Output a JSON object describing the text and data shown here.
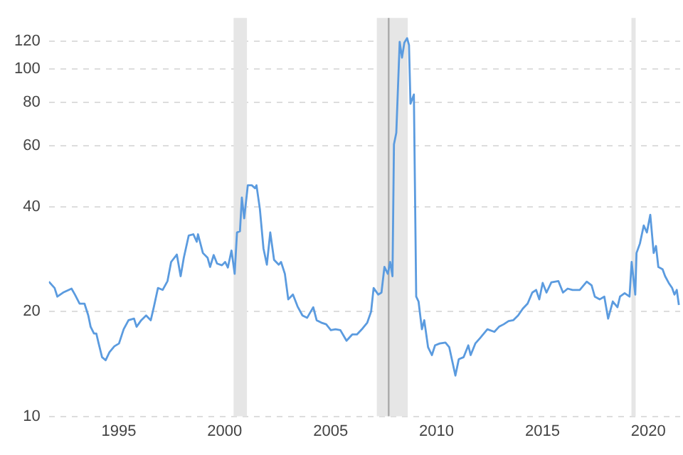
{
  "chart_data": {
    "type": "line",
    "log": "y",
    "grid": "y",
    "marker": "none",
    "line_style": "solid",
    "xlim": [
      1991.7,
      2021.5
    ],
    "xticks": [
      1995,
      2000,
      2005,
      2010,
      2015,
      2020
    ],
    "ylim": [
      10,
      140
    ],
    "yticks": [
      10,
      20,
      40,
      60,
      80,
      100,
      120
    ],
    "bands": [
      {
        "axis": "x",
        "from": 2000.42,
        "to": 2001.05,
        "color": "#e6e6e6"
      },
      {
        "axis": "x",
        "from": 2007.18,
        "to": 2008.64,
        "color": "#e6e6e6"
      },
      {
        "axis": "x",
        "from": 2019.2,
        "to": 2019.4,
        "color": "#e6e6e6"
      }
    ],
    "ref_lines": [
      {
        "axis": "x",
        "value": 2007.74,
        "color": "#aaaaaa"
      }
    ],
    "series": [
      {
        "color": "#5b9bdf",
        "x": [
          1991.7,
          1991.97,
          1992.1,
          1992.37,
          1992.77,
          1992.93,
          1993.15,
          1993.38,
          1993.56,
          1993.67,
          1993.83,
          1993.94,
          1994.05,
          1994.21,
          1994.38,
          1994.56,
          1994.79,
          1995.01,
          1995.23,
          1995.46,
          1995.72,
          1995.84,
          1996.06,
          1996.29,
          1996.51,
          1996.66,
          1996.85,
          1997.07,
          1997.3,
          1997.47,
          1997.74,
          1997.92,
          1998.07,
          1998.3,
          1998.52,
          1998.68,
          1998.74,
          1998.97,
          1999.19,
          1999.31,
          1999.48,
          1999.64,
          1999.87,
          2000.02,
          2000.15,
          2000.32,
          2000.47,
          2000.58,
          2000.72,
          2000.81,
          2000.92,
          2001.09,
          2001.28,
          2001.43,
          2001.5,
          2001.66,
          2001.83,
          2001.99,
          2002.15,
          2002.33,
          2002.55,
          2002.66,
          2002.84,
          2003.0,
          2003.22,
          2003.44,
          2003.67,
          2003.89,
          2004.18,
          2004.34,
          2004.56,
          2004.79,
          2005.01,
          2005.23,
          2005.46,
          2005.75,
          2006.02,
          2006.24,
          2006.51,
          2006.73,
          2006.91,
          2007.03,
          2007.25,
          2007.4,
          2007.54,
          2007.7,
          2007.81,
          2007.92,
          2007.99,
          2008.1,
          2008.26,
          2008.37,
          2008.48,
          2008.61,
          2008.7,
          2008.77,
          2008.93,
          2009.04,
          2009.15,
          2009.31,
          2009.42,
          2009.6,
          2009.78,
          2009.93,
          2010.15,
          2010.42,
          2010.6,
          2010.89,
          2011.05,
          2011.28,
          2011.5,
          2011.61,
          2011.83,
          2012.06,
          2012.4,
          2012.73,
          2012.95,
          2013.17,
          2013.4,
          2013.62,
          2013.85,
          2014.07,
          2014.3,
          2014.52,
          2014.7,
          2014.85,
          2015.01,
          2015.19,
          2015.42,
          2015.75,
          2015.97,
          2016.19,
          2016.42,
          2016.76,
          2017.09,
          2017.32,
          2017.47,
          2017.7,
          2017.92,
          2018.1,
          2018.32,
          2018.54,
          2018.66,
          2018.88,
          2019.11,
          2019.21,
          2019.38,
          2019.44,
          2019.6,
          2019.78,
          2019.93,
          2020.09,
          2020.25,
          2020.36,
          2020.47,
          2020.67,
          2020.79,
          2020.96,
          2021.12,
          2021.23,
          2021.34,
          2021.44
        ],
        "values": [
          24.4,
          23.4,
          22.1,
          22.7,
          23.3,
          22.4,
          21.1,
          21.1,
          19.5,
          18.1,
          17.3,
          17.3,
          16.2,
          14.8,
          14.5,
          15.3,
          15.9,
          16.2,
          17.8,
          18.9,
          19.1,
          18.1,
          18.9,
          19.5,
          18.9,
          20.7,
          23.4,
          23.1,
          24.5,
          27.8,
          29.2,
          25.3,
          28.6,
          33.1,
          33.4,
          31.8,
          33.4,
          29.5,
          28.6,
          26.9,
          29.1,
          27.5,
          27.2,
          27.8,
          26.8,
          30.0,
          25.7,
          33.8,
          34.1,
          42.6,
          37.1,
          46.2,
          46.2,
          45.3,
          46.2,
          39.5,
          30.4,
          27.3,
          33.8,
          28.2,
          27.3,
          27.8,
          25.7,
          21.7,
          22.4,
          20.7,
          19.5,
          19.2,
          20.6,
          18.9,
          18.6,
          18.4,
          17.7,
          17.8,
          17.7,
          16.5,
          17.2,
          17.2,
          17.9,
          18.6,
          20.0,
          23.4,
          22.4,
          22.7,
          26.9,
          25.7,
          27.8,
          25.3,
          60.6,
          65.4,
          119.5,
          107.6,
          118.8,
          122.4,
          116.9,
          79.3,
          84.3,
          22.1,
          21.4,
          17.8,
          18.9,
          15.8,
          15.0,
          16.0,
          16.2,
          16.3,
          15.8,
          13.1,
          14.6,
          14.8,
          16.0,
          15.0,
          16.2,
          16.8,
          17.8,
          17.5,
          18.1,
          18.4,
          18.8,
          18.9,
          19.5,
          20.4,
          21.1,
          22.7,
          23.1,
          21.7,
          24.2,
          22.7,
          24.3,
          24.5,
          22.7,
          23.3,
          23.1,
          23.1,
          24.4,
          23.8,
          22.1,
          21.7,
          22.1,
          19.1,
          21.4,
          20.6,
          22.1,
          22.6,
          22.1,
          27.8,
          22.4,
          29.5,
          31.4,
          35.4,
          33.8,
          38.0,
          29.5,
          30.9,
          26.9,
          26.5,
          25.3,
          24.2,
          23.4,
          22.4,
          23.1,
          20.9
        ]
      }
    ]
  }
}
